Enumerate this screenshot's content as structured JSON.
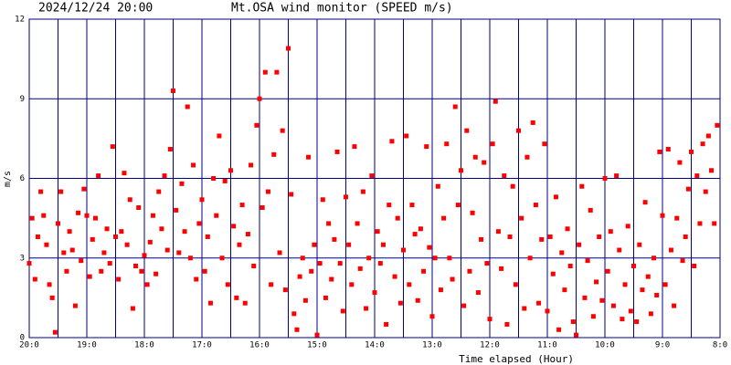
{
  "chart_data": {
    "type": "scatter",
    "header_left": "2024/12/24 20:00",
    "title": "Mt.OSA wind monitor (SPEED m/s)",
    "y_label": "m/s",
    "x_label": "Time elapsed (Hour)",
    "color": "#ff0000",
    "grid": true,
    "xlim": [
      0,
      12
    ],
    "ylim": [
      0,
      12
    ],
    "yticks": [
      0,
      3,
      6,
      9,
      12
    ],
    "xticks": [
      {
        "value": 0,
        "label": "20:0"
      },
      {
        "value": 1,
        "label": "19:0"
      },
      {
        "value": 2,
        "label": "18:0"
      },
      {
        "value": 3,
        "label": "17:0"
      },
      {
        "value": 4,
        "label": "16:0"
      },
      {
        "value": 5,
        "label": "15:0"
      },
      {
        "value": 6,
        "label": "14:0"
      },
      {
        "value": 7,
        "label": "13:0"
      },
      {
        "value": 8,
        "label": "12:0"
      },
      {
        "value": 9,
        "label": "11:0"
      },
      {
        "value": 10,
        "label": "10:0"
      },
      {
        "value": 11,
        "label": "9:0"
      },
      {
        "value": 12,
        "label": "8:0"
      }
    ],
    "xminor": [
      0.5,
      1.5,
      2.5,
      3.5,
      4.5,
      5.5,
      6.5,
      7.5,
      8.5,
      9.5,
      10.5,
      11.5
    ],
    "x": [
      0,
      0.05,
      0.1,
      0.15,
      0.2,
      0.25,
      0.3,
      0.35,
      0.4,
      0.45,
      0.5,
      0.55,
      0.6,
      0.65,
      0.7,
      0.75,
      0.8,
      0.85,
      0.9,
      0.95,
      1,
      1.05,
      1.1,
      1.15,
      1.2,
      1.25,
      1.3,
      1.35,
      1.4,
      1.45,
      1.5,
      1.55,
      1.6,
      1.65,
      1.7,
      1.75,
      1.8,
      1.85,
      1.9,
      1.95,
      2,
      2.05,
      2.1,
      2.15,
      2.2,
      2.25,
      2.3,
      2.35,
      2.4,
      2.45,
      2.5,
      2.55,
      2.6,
      2.65,
      2.7,
      2.75,
      2.8,
      2.85,
      2.9,
      2.95,
      3,
      3.05,
      3.1,
      3.15,
      3.2,
      3.25,
      3.3,
      3.35,
      3.4,
      3.45,
      3.5,
      3.55,
      3.6,
      3.65,
      3.7,
      3.75,
      3.8,
      3.85,
      3.9,
      3.95,
      4,
      4.05,
      4.1,
      4.15,
      4.2,
      4.25,
      4.3,
      4.35,
      4.4,
      4.45,
      4.5,
      4.55,
      4.6,
      4.65,
      4.7,
      4.75,
      4.8,
      4.85,
      4.9,
      4.95,
      5,
      5.05,
      5.1,
      5.15,
      5.2,
      5.25,
      5.3,
      5.35,
      5.4,
      5.45,
      5.5,
      5.55,
      5.6,
      5.65,
      5.7,
      5.75,
      5.8,
      5.85,
      5.9,
      5.95,
      6,
      6.05,
      6.1,
      6.15,
      6.2,
      6.25,
      6.3,
      6.35,
      6.4,
      6.45,
      6.5,
      6.55,
      6.6,
      6.65,
      6.7,
      6.75,
      6.8,
      6.85,
      6.9,
      6.95,
      7,
      7.05,
      7.1,
      7.15,
      7.2,
      7.25,
      7.3,
      7.35,
      7.4,
      7.45,
      7.5,
      7.55,
      7.6,
      7.65,
      7.7,
      7.75,
      7.8,
      7.85,
      7.9,
      7.95,
      8,
      8.05,
      8.1,
      8.15,
      8.2,
      8.25,
      8.3,
      8.35,
      8.4,
      8.45,
      8.5,
      8.55,
      8.6,
      8.65,
      8.7,
      8.75,
      8.8,
      8.85,
      8.9,
      8.95,
      9,
      9.05,
      9.1,
      9.15,
      9.2,
      9.25,
      9.3,
      9.35,
      9.4,
      9.45,
      9.5,
      9.55,
      9.6,
      9.65,
      9.7,
      9.75,
      9.8,
      9.85,
      9.9,
      9.95,
      10,
      10.05,
      10.1,
      10.15,
      10.2,
      10.25,
      10.3,
      10.35,
      10.4,
      10.45,
      10.5,
      10.55,
      10.6,
      10.65,
      10.7,
      10.75,
      10.8,
      10.85,
      10.9,
      10.95,
      11,
      11.05,
      11.1,
      11.15,
      11.2,
      11.25,
      11.3,
      11.35,
      11.4,
      11.45,
      11.5,
      11.55,
      11.6,
      11.65,
      11.7,
      11.75,
      11.8,
      11.85,
      11.9,
      11.95
    ],
    "values": [
      2.8,
      4.5,
      2.2,
      3.8,
      5.5,
      4.6,
      3.5,
      2.0,
      1.5,
      0.2,
      4.3,
      5.5,
      3.2,
      2.5,
      4.0,
      3.3,
      1.2,
      4.7,
      2.9,
      5.6,
      4.6,
      2.3,
      3.7,
      4.5,
      6.1,
      2.5,
      3.2,
      4.1,
      2.8,
      7.2,
      3.8,
      2.2,
      4.0,
      6.2,
      3.5,
      5.2,
      1.1,
      2.7,
      4.9,
      2.5,
      3.1,
      2.0,
      3.6,
      4.6,
      2.4,
      5.5,
      4.1,
      6.1,
      3.3,
      7.1,
      9.3,
      4.8,
      3.2,
      5.8,
      4.0,
      8.7,
      3.0,
      6.5,
      2.2,
      4.3,
      5.2,
      2.5,
      3.8,
      1.3,
      6.0,
      4.6,
      7.6,
      3.0,
      5.9,
      2.0,
      6.3,
      4.2,
      1.5,
      3.5,
      5.0,
      1.3,
      3.9,
      6.5,
      2.7,
      8.0,
      9.0,
      4.9,
      10.0,
      5.5,
      2.0,
      6.9,
      10.0,
      3.2,
      7.8,
      1.8,
      10.9,
      5.4,
      0.9,
      0.3,
      2.3,
      3.0,
      1.4,
      6.8,
      2.5,
      3.5,
      0.1,
      2.8,
      5.2,
      1.5,
      4.3,
      2.2,
      3.7,
      7.0,
      2.8,
      1.0,
      5.3,
      3.5,
      2.0,
      7.2,
      4.3,
      2.6,
      5.5,
      1.1,
      3.0,
      6.1,
      1.7,
      4.0,
      2.8,
      3.5,
      0.5,
      5.0,
      7.4,
      2.3,
      4.5,
      1.3,
      3.3,
      7.6,
      2.0,
      5.0,
      3.9,
      1.4,
      4.1,
      2.5,
      7.2,
      3.4,
      0.8,
      3.0,
      5.7,
      1.8,
      4.5,
      7.3,
      3.0,
      2.2,
      8.7,
      5.0,
      6.3,
      1.2,
      7.8,
      2.5,
      4.7,
      6.8,
      1.7,
      3.7,
      6.6,
      2.8,
      0.7,
      7.3,
      8.9,
      4.0,
      2.6,
      6.1,
      0.5,
      3.8,
      5.7,
      2.0,
      7.8,
      4.5,
      1.1,
      6.8,
      3.0,
      8.1,
      5.0,
      1.3,
      3.7,
      7.3,
      1.0,
      3.8,
      2.4,
      5.3,
      0.3,
      3.2,
      1.8,
      4.1,
      2.7,
      0.6,
      0.1,
      3.5,
      5.7,
      1.5,
      2.9,
      4.8,
      0.8,
      2.1,
      3.8,
      1.4,
      6.0,
      2.5,
      4.0,
      1.2,
      6.1,
      3.3,
      0.7,
      2.0,
      4.2,
      1.0,
      2.7,
      0.6,
      3.5,
      1.8,
      5.1,
      2.3,
      0.9,
      3.0,
      1.6,
      7.0,
      4.6,
      2.0,
      7.1,
      3.3,
      1.2,
      4.5,
      6.6,
      2.9,
      3.8,
      5.6,
      7.0,
      2.7,
      6.1,
      4.3,
      7.3,
      5.5,
      7.6,
      6.3,
      4.3,
      8.0
    ]
  }
}
